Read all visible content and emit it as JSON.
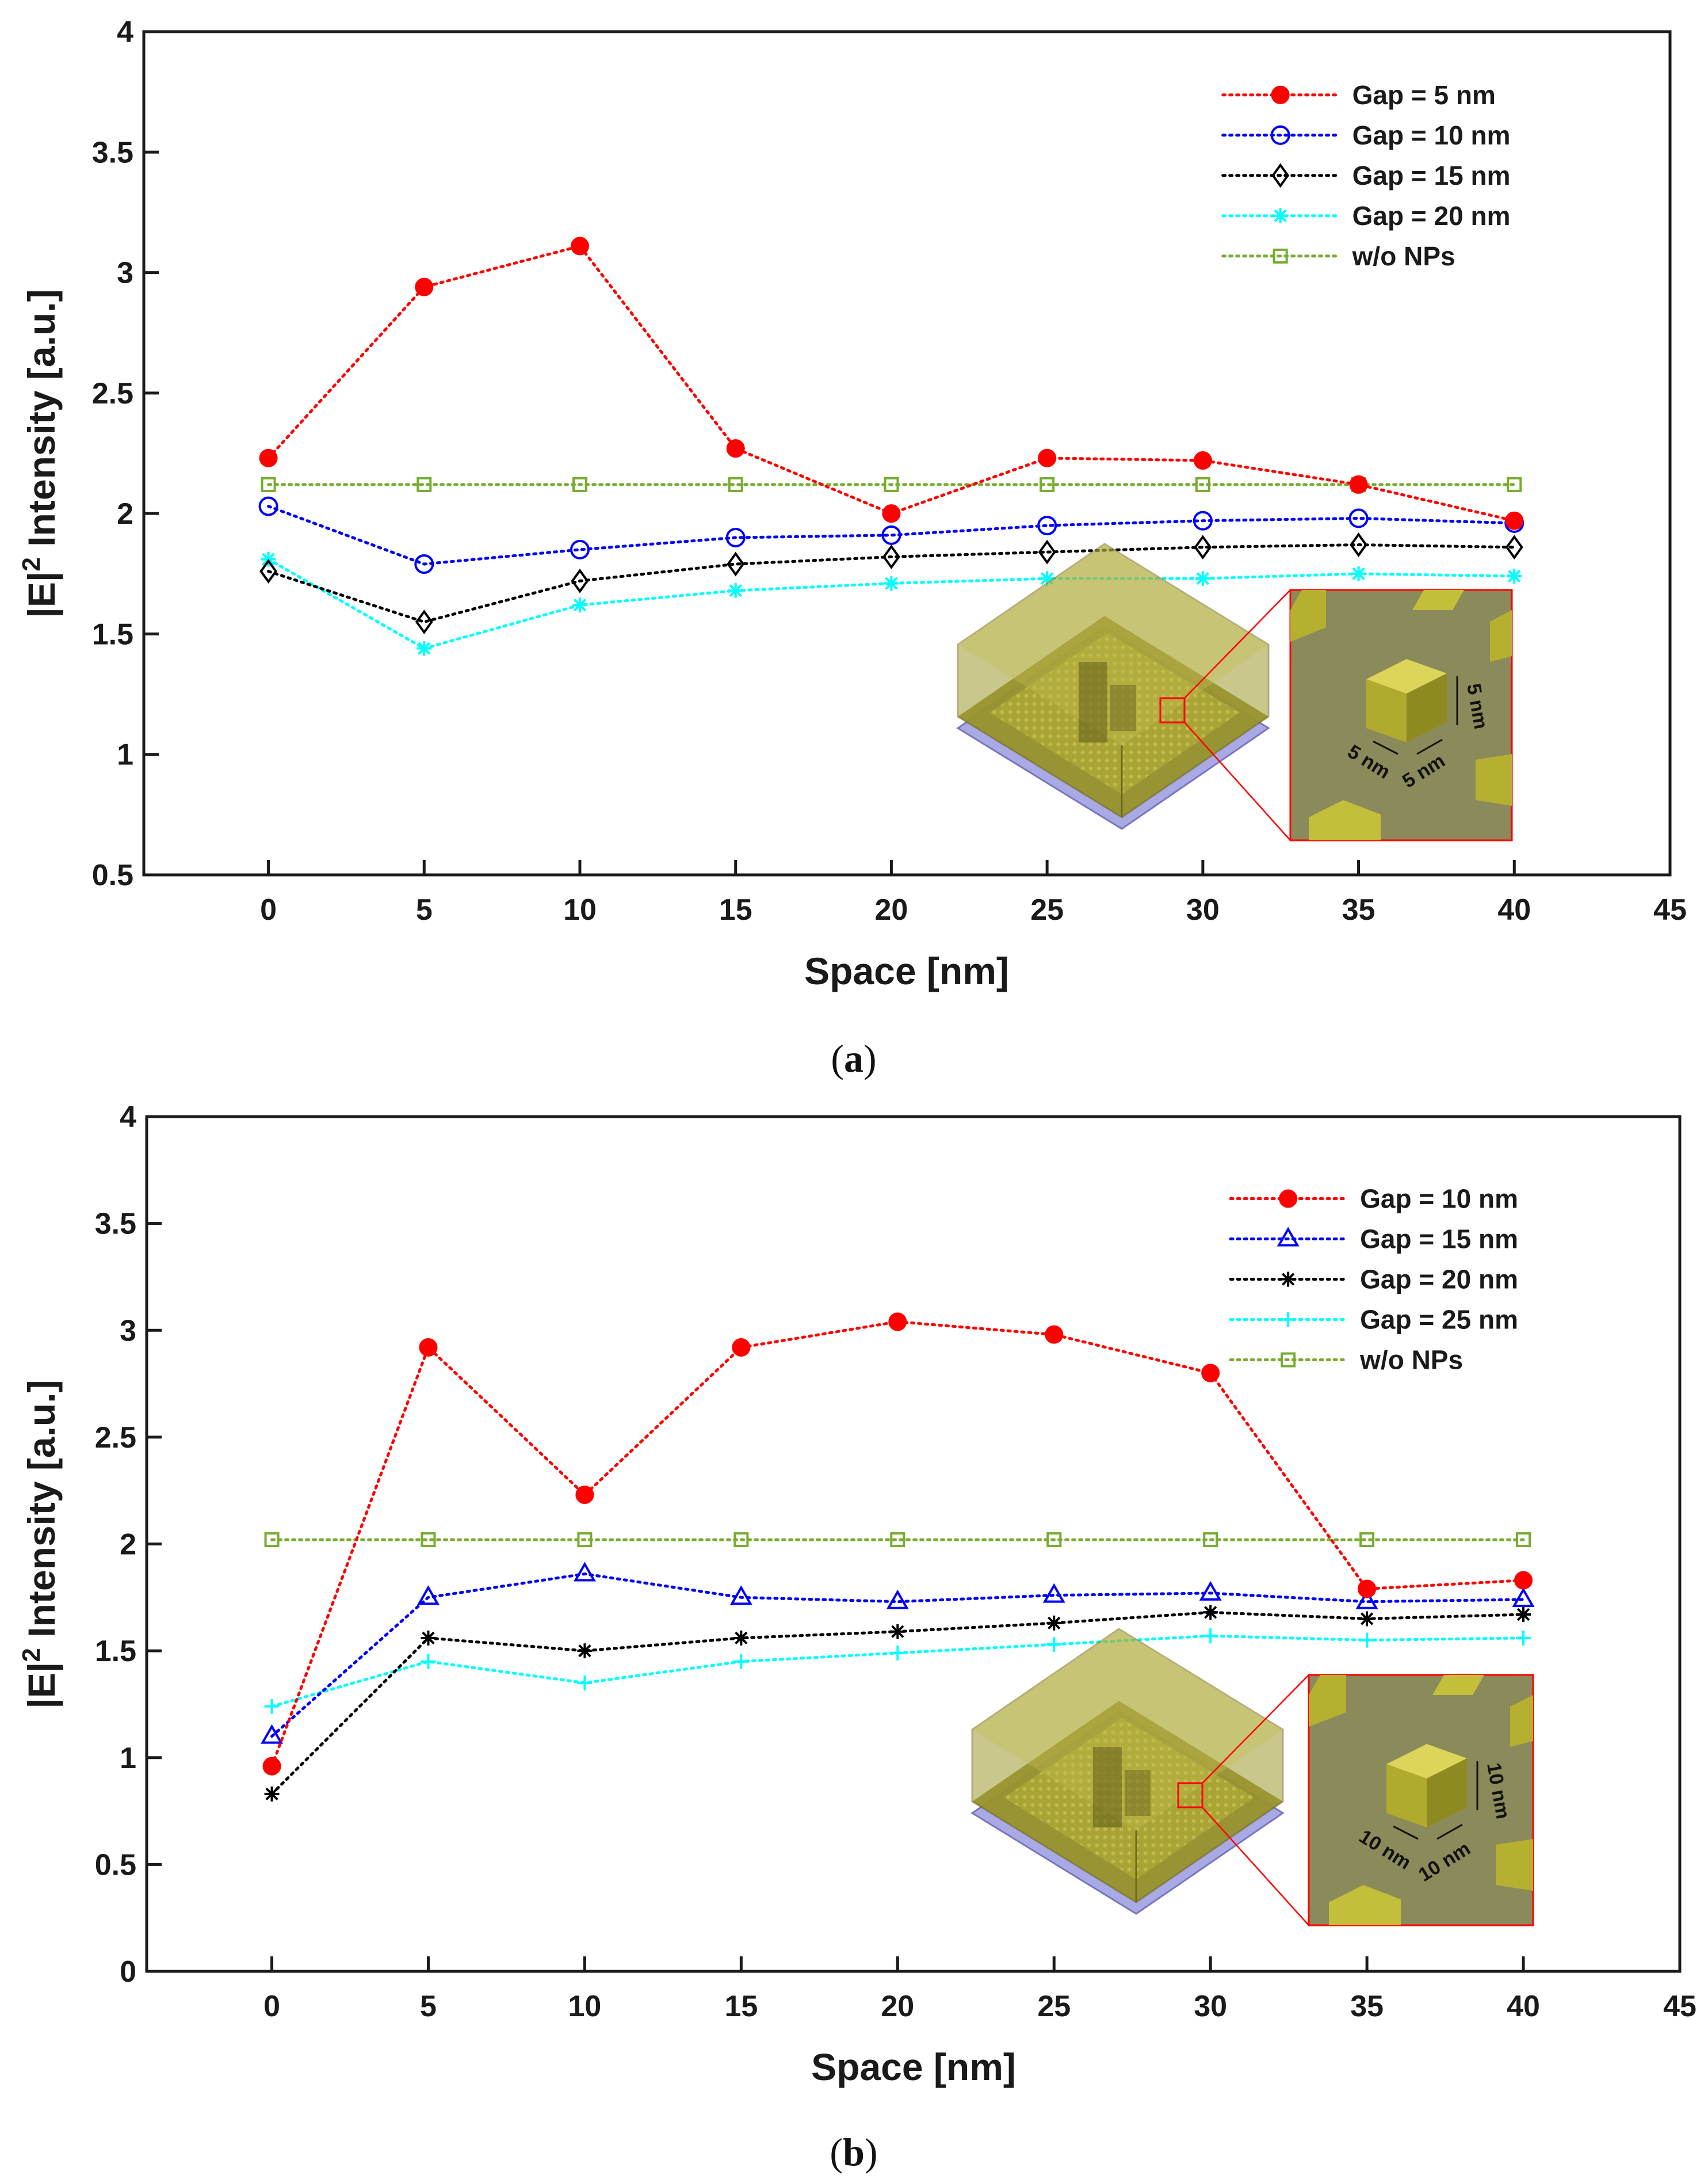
{
  "chart_data": [
    {
      "type": "line",
      "panel": "a",
      "caption": "a",
      "xlabel": "Space [nm]",
      "ylabel_main": "|E|",
      "ylabel_sup": "2",
      "ylabel_rest": " Intensity [a.u.]",
      "xlim": [
        -4,
        45
      ],
      "ylim": [
        0.5,
        4
      ],
      "xticks": [
        0,
        5,
        10,
        15,
        20,
        25,
        30,
        35,
        40,
        45
      ],
      "yticks": [
        0.5,
        1,
        1.5,
        2,
        2.5,
        3,
        3.5,
        4
      ],
      "ytick_labels": [
        "0.5",
        "1",
        "1.5",
        "2",
        "2.5",
        "3",
        "3.5",
        "4"
      ],
      "x": [
        0,
        5,
        10,
        15,
        20,
        25,
        30,
        35,
        40
      ],
      "series": [
        {
          "name": "Gap = 5 nm",
          "color": "#ff0000",
          "marker": "filled-circle",
          "values": [
            2.23,
            2.94,
            3.11,
            2.27,
            2.0,
            2.23,
            2.22,
            2.12,
            1.97
          ]
        },
        {
          "name": "Gap = 10 nm",
          "color": "#0000ff",
          "marker": "open-circle",
          "values": [
            2.03,
            1.79,
            1.85,
            1.9,
            1.91,
            1.95,
            1.97,
            1.98,
            1.96
          ]
        },
        {
          "name": "Gap = 15 nm",
          "color": "#000000",
          "marker": "open-diamond",
          "values": [
            1.76,
            1.55,
            1.72,
            1.79,
            1.82,
            1.84,
            1.86,
            1.87,
            1.86
          ]
        },
        {
          "name": "Gap = 20 nm",
          "color": "#00ffff",
          "marker": "asterisk",
          "values": [
            1.81,
            1.44,
            1.62,
            1.68,
            1.71,
            1.73,
            1.73,
            1.75,
            1.74
          ]
        },
        {
          "name": "w/o NPs",
          "color": "#77ac30",
          "marker": "open-square",
          "values": [
            2.12,
            2.12,
            2.12,
            2.12,
            2.12,
            2.12,
            2.12,
            2.12,
            2.12
          ]
        }
      ],
      "legend_position": "top-right",
      "inset_labels": [
        "5 nm",
        "5 nm",
        "5 nm"
      ]
    },
    {
      "type": "line",
      "panel": "b",
      "caption": "b",
      "xlabel": "Space [nm]",
      "ylabel_main": "|E|",
      "ylabel_sup": "2",
      "ylabel_rest": " Intensity [a.u.]",
      "xlim": [
        -4,
        45
      ],
      "ylim": [
        0,
        4
      ],
      "xticks": [
        0,
        5,
        10,
        15,
        20,
        25,
        30,
        35,
        40,
        45
      ],
      "yticks": [
        0,
        0.5,
        1,
        1.5,
        2,
        2.5,
        3,
        3.5,
        4
      ],
      "ytick_labels": [
        "0",
        "0.5",
        "1",
        "1.5",
        "2",
        "2.5",
        "3",
        "3.5",
        "4"
      ],
      "x": [
        0,
        5,
        10,
        15,
        20,
        25,
        30,
        35,
        40
      ],
      "series": [
        {
          "name": "Gap = 10 nm",
          "color": "#ff0000",
          "marker": "filled-circle",
          "values": [
            0.96,
            2.92,
            2.23,
            2.92,
            3.04,
            2.98,
            2.8,
            1.79,
            1.83
          ]
        },
        {
          "name": "Gap = 15 nm",
          "color": "#0000ff",
          "marker": "open-triangle",
          "values": [
            1.1,
            1.75,
            1.86,
            1.75,
            1.73,
            1.76,
            1.77,
            1.73,
            1.74
          ]
        },
        {
          "name": "Gap = 20 nm",
          "color": "#000000",
          "marker": "asterisk",
          "values": [
            0.83,
            1.56,
            1.5,
            1.56,
            1.59,
            1.63,
            1.68,
            1.65,
            1.67
          ]
        },
        {
          "name": "Gap = 25 nm",
          "color": "#00ffff",
          "marker": "plus",
          "values": [
            1.24,
            1.45,
            1.35,
            1.45,
            1.49,
            1.53,
            1.57,
            1.55,
            1.56
          ]
        },
        {
          "name": "w/o NPs",
          "color": "#77ac30",
          "marker": "open-square",
          "values": [
            2.02,
            2.02,
            2.02,
            2.02,
            2.02,
            2.02,
            2.02,
            2.02,
            2.02
          ]
        }
      ],
      "legend_position": "top-right",
      "inset_labels": [
        "10 nm",
        "10 nm",
        "10 nm"
      ]
    }
  ]
}
